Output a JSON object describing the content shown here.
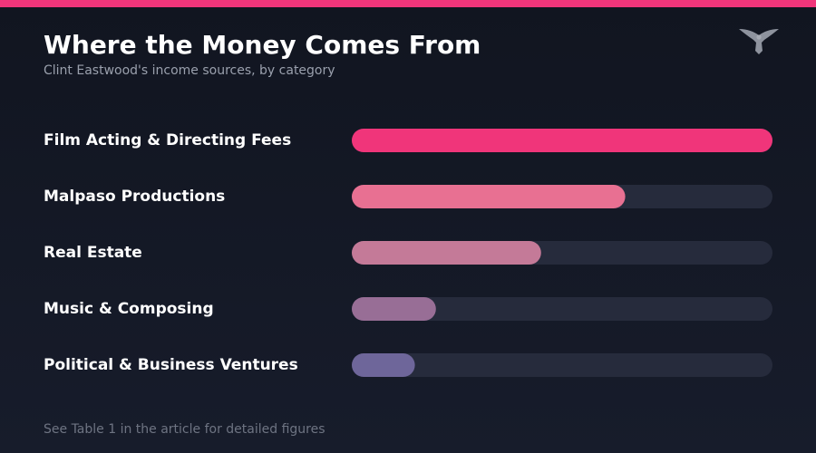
{
  "colors": {
    "accent": "#f0357a",
    "track": "#262b3c",
    "background": "#141824"
  },
  "header": {
    "title": "Where the Money Comes From",
    "subtitle": "Clint Eastwood's income sources, by category",
    "logo_icon": "eagle-icon"
  },
  "chart_data": {
    "type": "bar",
    "orientation": "horizontal",
    "categories": [
      "Film Acting & Directing Fees",
      "Malpaso Productions",
      "Real Estate",
      "Music & Composing",
      "Political & Business Ventures"
    ],
    "values": [
      100,
      65,
      45,
      20,
      15
    ],
    "bar_colors": [
      "#f0357a",
      "#e87092",
      "#c47a98",
      "#986e96",
      "#6e669a"
    ],
    "xlim": [
      0,
      100
    ],
    "grid": false
  },
  "footer": {
    "note": "See Table 1 in the article for detailed figures"
  }
}
